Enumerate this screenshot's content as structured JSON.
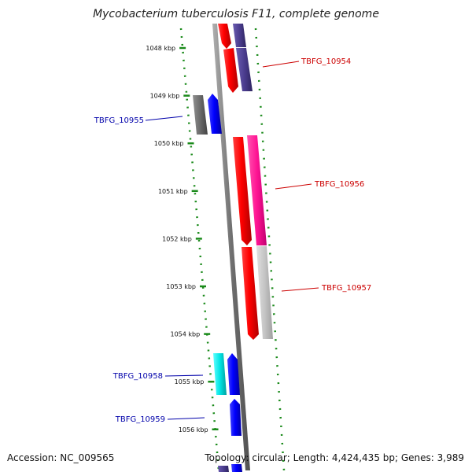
{
  "title": "Mycobacterium tuberculosis F11, complete genome",
  "footer": {
    "accession": "Accession: NC_009565",
    "summary": "Topology: circular; Length: 4,424,435 bp; Genes: 3,989"
  },
  "ticks": [
    {
      "label": "1048 kbp",
      "kbp": 1048
    },
    {
      "label": "1049 kbp",
      "kbp": 1049
    },
    {
      "label": "1050 kbp",
      "kbp": 1050
    },
    {
      "label": "1051 kbp",
      "kbp": 1051
    },
    {
      "label": "1052 kbp",
      "kbp": 1052
    },
    {
      "label": "1053 kbp",
      "kbp": 1053
    },
    {
      "label": "1054 kbp",
      "kbp": 1054
    },
    {
      "label": "1055 kbp",
      "kbp": 1055
    },
    {
      "label": "1056 kbp",
      "kbp": 1056
    }
  ],
  "gene_labels": [
    {
      "name": "TBFG_10954",
      "color": "#cc0000",
      "side": "right",
      "kbp": 1048.3
    },
    {
      "name": "TBFG_10955",
      "color": "#0000aa",
      "side": "left",
      "kbp": 1049.5
    },
    {
      "name": "TBFG_10956",
      "color": "#cc0000",
      "side": "right",
      "kbp": 1051.0
    },
    {
      "name": "TBFG_10957",
      "color": "#cc0000",
      "side": "right",
      "kbp": 1053.0
    },
    {
      "name": "TBFG_10958",
      "color": "#0000aa",
      "side": "left",
      "kbp": 1054.9
    },
    {
      "name": "TBFG_10959",
      "color": "#0000aa",
      "side": "left",
      "kbp": 1055.8
    }
  ],
  "colors": {
    "cds_red": "#ff0000",
    "cds_blue": "#0000ff",
    "cds_purple": "#4b3d8f",
    "cds_gray": "#707070",
    "cds_pink": "#ff1493",
    "cds_lightgray": "#c0c0c0",
    "cds_cyan": "#00e5e5",
    "backbone": "#808080",
    "gc_dots": "#1a8a1a"
  }
}
